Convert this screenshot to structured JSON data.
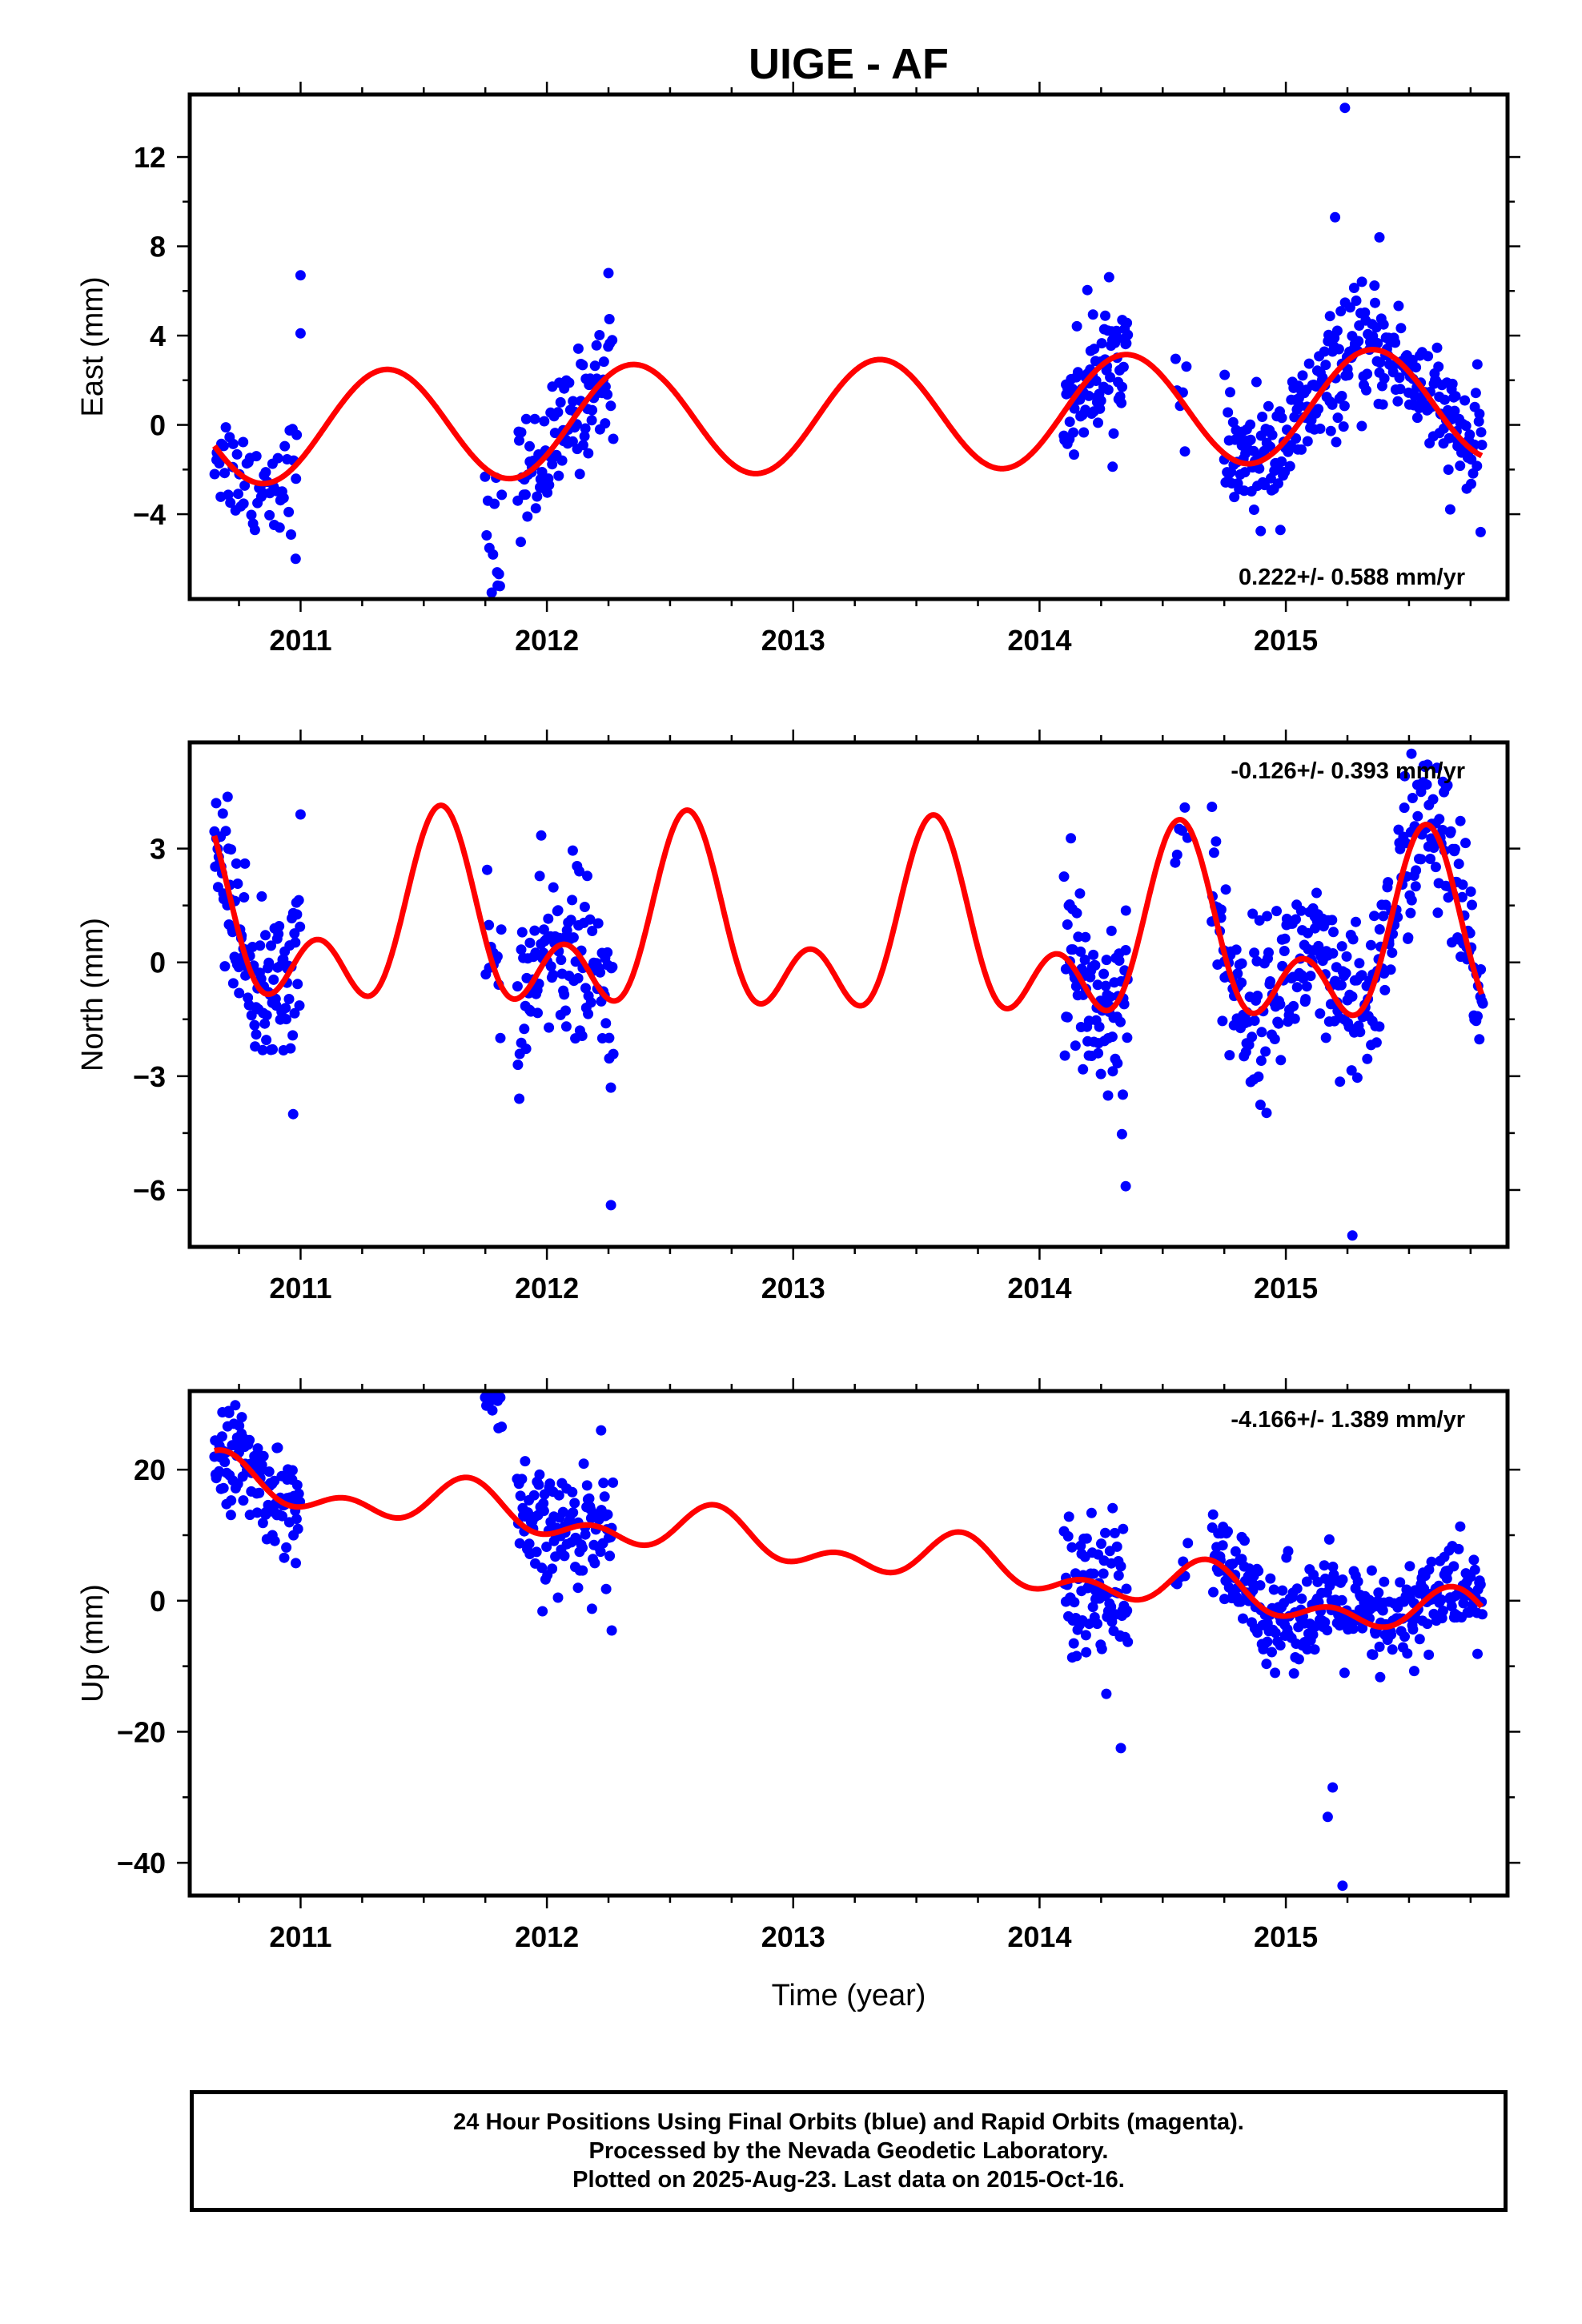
{
  "title": "UIGE - AF",
  "colors": {
    "final_orbits": "#0000ff",
    "model": "#ff0000",
    "frame": "#000000"
  },
  "footer": {
    "line1": "24 Hour Positions Using Final Orbits (blue) and Rapid Orbits (magenta).",
    "line2": "Processed by the Nevada Geodetic Laboratory.",
    "line3": "Plotted on 2025-Aug-23. Last data on 2015-Oct-16."
  },
  "chart_data": [
    {
      "type": "scatter",
      "component": "east",
      "ylabel": "East (mm)",
      "xlabel": "",
      "xlim": [
        2010.55,
        2015.9
      ],
      "ylim": [
        -7.8,
        14.8
      ],
      "xticks": [
        2011,
        2012,
        2013,
        2014,
        2015
      ],
      "yticks": [
        -4,
        0,
        4,
        8,
        12
      ],
      "rate_label": "0.222+/- 0.588 mm/yr",
      "rate_label_position": "bottom-right",
      "model": {
        "rate": 0.222,
        "offset": 0.35,
        "annual_amplitude": 2.5,
        "annual_peak": 0.35,
        "semiannual_amplitude": 0.0,
        "semiannual_peak": 0.0
      },
      "data_segments": [
        {
          "start": 2010.65,
          "end": 2010.99,
          "step": 0.006,
          "sigma": 1.2
        },
        {
          "start": 2011.75,
          "end": 2011.82,
          "step": 0.006,
          "sigma": 1.6,
          "offset": -3.0
        },
        {
          "start": 2011.88,
          "end": 2012.27,
          "step": 0.004,
          "sigma": 1.3
        },
        {
          "start": 2014.1,
          "end": 2014.36,
          "step": 0.003,
          "sigma": 1.4
        },
        {
          "start": 2014.55,
          "end": 2014.6,
          "step": 0.01,
          "sigma": 0.8
        },
        {
          "start": 2014.75,
          "end": 2015.8,
          "step": 0.0035,
          "sigma": 1.3
        }
      ],
      "highlight_points": [
        {
          "x": 2011.0,
          "y": 6.7
        },
        {
          "x": 2011.0,
          "y": 4.1
        },
        {
          "x": 2012.25,
          "y": 6.8
        },
        {
          "x": 2015.24,
          "y": 14.2
        },
        {
          "x": 2015.2,
          "y": 9.3
        },
        {
          "x": 2015.38,
          "y": 8.4
        },
        {
          "x": 2010.98,
          "y": -6.0
        },
        {
          "x": 2011.8,
          "y": -7.2
        }
      ]
    },
    {
      "type": "scatter",
      "component": "north",
      "ylabel": "North (mm)",
      "xlabel": "",
      "xlim": [
        2010.55,
        2015.9
      ],
      "ylim": [
        -7.5,
        5.8
      ],
      "xticks": [
        2011,
        2012,
        2013,
        2014,
        2015
      ],
      "yticks": [
        -6,
        -3,
        0,
        3
      ],
      "rate_label": "-0.126+/- 0.393 mm/yr",
      "rate_label_position": "top-right",
      "model": {
        "rate": -0.126,
        "offset": 0.66,
        "annual_amplitude": 1.8,
        "annual_peak": 0.57,
        "semiannual_amplitude": 1.5,
        "semiannual_peak": 0.57
      },
      "data_segments": [
        {
          "start": 2010.65,
          "end": 2011.0,
          "step": 0.003,
          "sigma": 1.0
        },
        {
          "start": 2011.75,
          "end": 2011.82,
          "step": 0.006,
          "sigma": 1.2
        },
        {
          "start": 2011.88,
          "end": 2012.27,
          "step": 0.0035,
          "sigma": 1.1
        },
        {
          "start": 2014.1,
          "end": 2014.36,
          "step": 0.003,
          "sigma": 1.3
        },
        {
          "start": 2014.55,
          "end": 2014.6,
          "step": 0.01,
          "sigma": 0.8
        },
        {
          "start": 2014.7,
          "end": 2015.8,
          "step": 0.0035,
          "sigma": 1.1
        }
      ],
      "highlight_points": [
        {
          "x": 2011.0,
          "y": 3.9
        },
        {
          "x": 2010.97,
          "y": -4.0
        },
        {
          "x": 2012.26,
          "y": -6.4
        },
        {
          "x": 2014.35,
          "y": -5.9
        },
        {
          "x": 2015.51,
          "y": 5.5
        },
        {
          "x": 2015.27,
          "y": -7.2
        },
        {
          "x": 2014.7,
          "y": 4.1
        }
      ]
    },
    {
      "type": "scatter",
      "component": "up",
      "ylabel": "Up (mm)",
      "xlabel": "Time (year)",
      "xlim": [
        2010.55,
        2015.9
      ],
      "ylim": [
        -45,
        32
      ],
      "xticks": [
        2011,
        2012,
        2013,
        2014,
        2015
      ],
      "yticks": [
        -40,
        -20,
        0,
        20
      ],
      "rate_label": "-4.166+/- 1.389 mm/yr",
      "rate_label_position": "top-right",
      "model": {
        "rate": -4.166,
        "offset": 8.5,
        "annual_amplitude": 2.6,
        "annual_peak": 0.68,
        "semiannual_amplitude": 2.2,
        "semiannual_peak": 0.18
      },
      "data_segments": [
        {
          "start": 2010.65,
          "end": 2011.0,
          "step": 0.003,
          "sigma": 3.6
        },
        {
          "start": 2011.75,
          "end": 2011.82,
          "step": 0.006,
          "sigma": 3.0,
          "offset": 14
        },
        {
          "start": 2011.88,
          "end": 2012.27,
          "step": 0.0035,
          "sigma": 4.5
        },
        {
          "start": 2014.1,
          "end": 2014.36,
          "step": 0.003,
          "sigma": 5.5
        },
        {
          "start": 2014.55,
          "end": 2014.6,
          "step": 0.01,
          "sigma": 2.0
        },
        {
          "start": 2014.7,
          "end": 2015.8,
          "step": 0.0035,
          "sigma": 3.8
        }
      ],
      "highlight_points": [
        {
          "x": 2010.76,
          "y": 25.5
        },
        {
          "x": 2011.8,
          "y": 30.5
        },
        {
          "x": 2012.22,
          "y": 26
        },
        {
          "x": 2015.23,
          "y": -43.5
        },
        {
          "x": 2015.17,
          "y": -33
        },
        {
          "x": 2015.19,
          "y": -28.5
        },
        {
          "x": 2014.33,
          "y": -22.5
        }
      ]
    }
  ]
}
